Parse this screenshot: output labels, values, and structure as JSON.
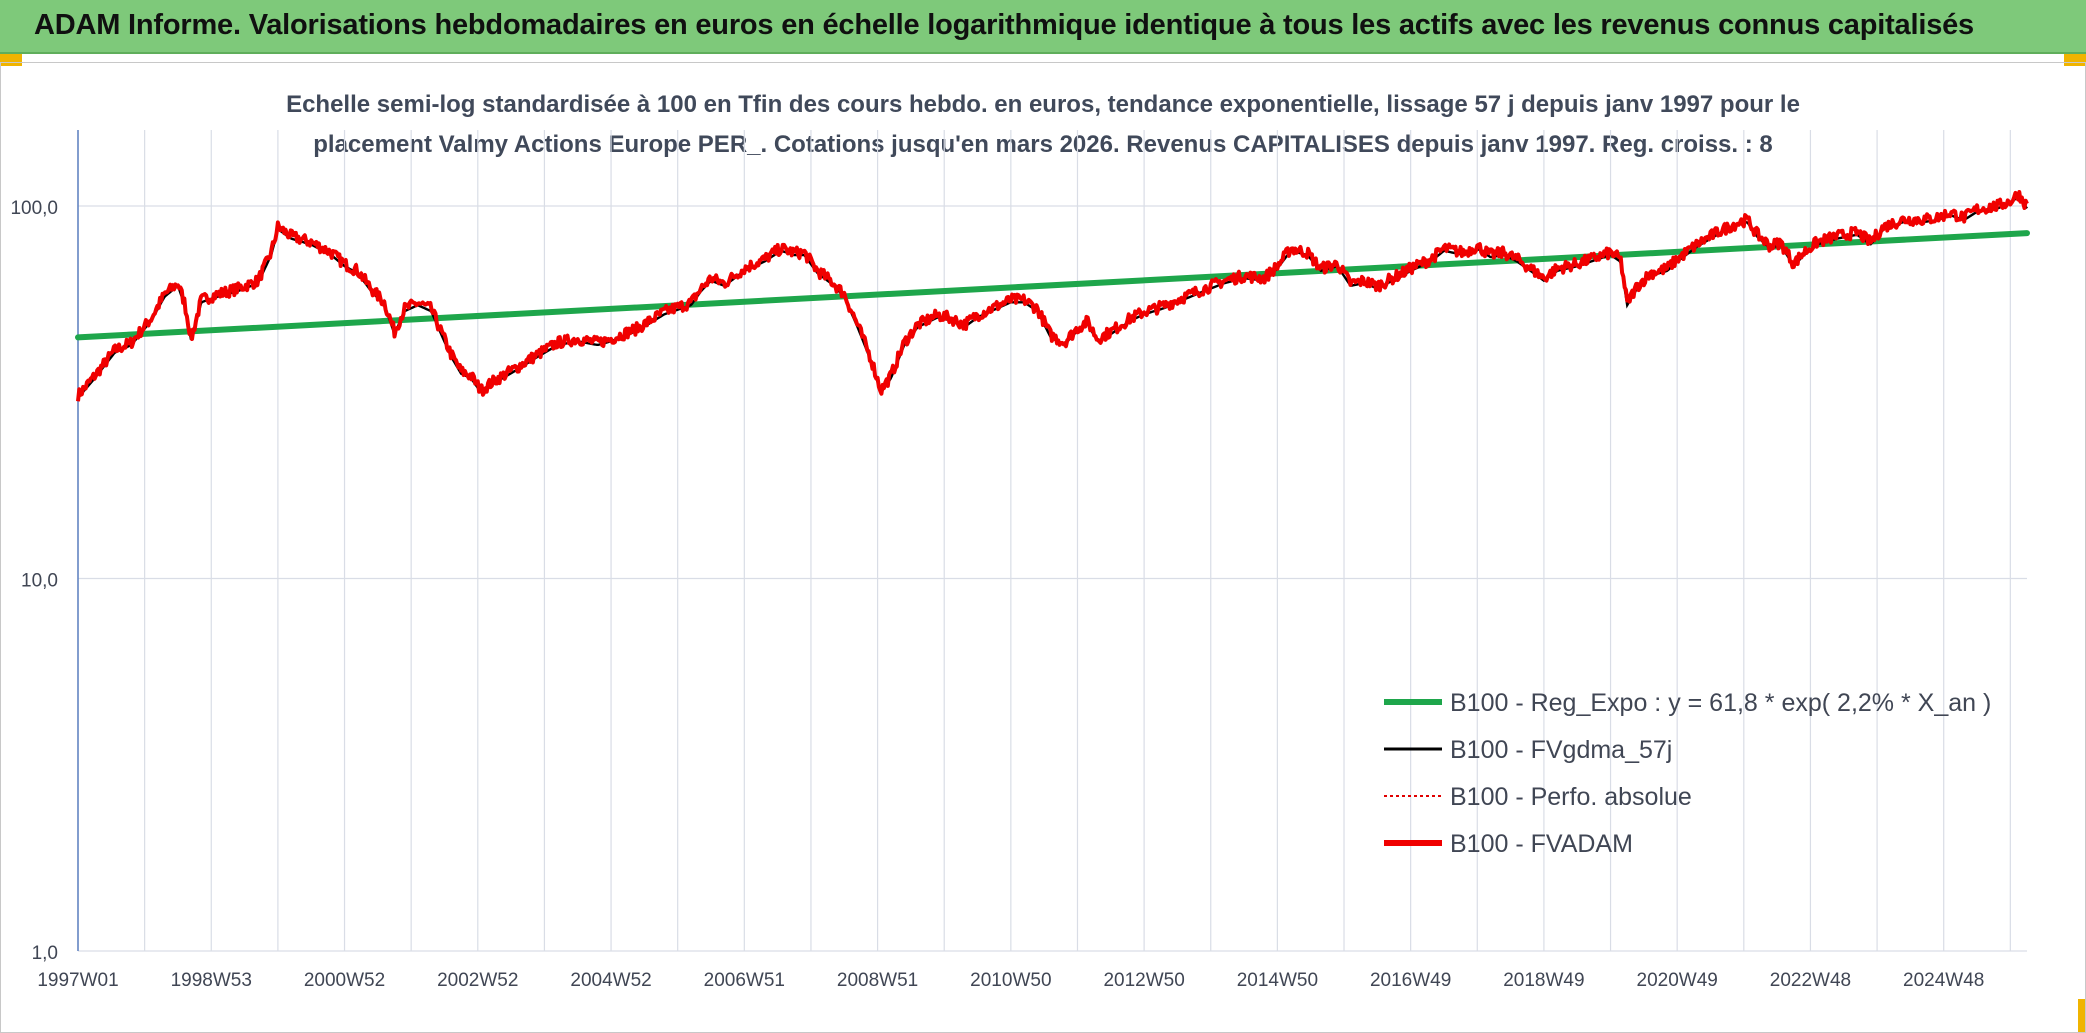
{
  "banner": {
    "title": "ADAM Informe. Valorisations hebdomadaires en euros en échelle logarithmique identique à tous les actifs avec les revenus connus capitalisés"
  },
  "colors": {
    "banner_bg": "#7ec97a",
    "accent": "#f0b400",
    "trend": "#1ea64b",
    "smooth": "#000000",
    "perfo": "#e00000",
    "fvadam": "#f00000",
    "grid": "#d9dde6"
  },
  "chart_data": {
    "type": "line",
    "title_lines": [
      "Echelle semi-log standardisée à 100 en Tfin des cours hebdo. en euros, tendance exponentielle, lissage 57 j depuis janv 1997 pour le",
      "placement Valmy Actions Europe PER_. Cotations jusqu'en mars 2026. Revenus CAPITALISES depuis janv 1997. Reg. croiss. : 8"
    ],
    "y_scale": "log",
    "ylim": [
      1,
      160
    ],
    "y_ticks": [
      {
        "value": 1,
        "label": "1,0"
      },
      {
        "value": 10,
        "label": "10,0"
      },
      {
        "value": 100,
        "label": "100,0"
      }
    ],
    "x_range": [
      1997.0,
      2026.25
    ],
    "x_ticks": [
      {
        "year": 1997.0,
        "label": "1997W01"
      },
      {
        "year": 1999.0,
        "label": "1998W53"
      },
      {
        "year": 2001.0,
        "label": "2000W52"
      },
      {
        "year": 2003.0,
        "label": "2002W52"
      },
      {
        "year": 2005.0,
        "label": "2004W52"
      },
      {
        "year": 2007.0,
        "label": "2006W51"
      },
      {
        "year": 2009.0,
        "label": "2008W51"
      },
      {
        "year": 2011.0,
        "label": "2010W50"
      },
      {
        "year": 2013.0,
        "label": "2012W50"
      },
      {
        "year": 2015.0,
        "label": "2014W50"
      },
      {
        "year": 2017.0,
        "label": "2016W49"
      },
      {
        "year": 2019.0,
        "label": "2018W49"
      },
      {
        "year": 2021.0,
        "label": "2020W49"
      },
      {
        "year": 2023.0,
        "label": "2022W48"
      },
      {
        "year": 2025.0,
        "label": "2024W48"
      }
    ],
    "grid": true,
    "legend_position": "bottom-right",
    "series": [
      {
        "key": "trend",
        "name": "B100 - Reg_Expo : y = 61,8 * exp( 2,2% *  X_an )",
        "style": "thick",
        "points": [
          [
            1997.0,
            44.4
          ],
          [
            2026.25,
            84.6
          ]
        ]
      },
      {
        "key": "smooth",
        "name": "B100 - FVgdma_57j",
        "style": "thin",
        "points": []
      },
      {
        "key": "perfo",
        "name": "B100 - Perfo. absolue",
        "style": "dotted",
        "points": []
      },
      {
        "key": "fvadam",
        "name": "B100 - FVADAM",
        "style": "thick",
        "points": [
          [
            1997.0,
            31
          ],
          [
            1997.25,
            35
          ],
          [
            1997.55,
            41
          ],
          [
            1997.8,
            43
          ],
          [
            1998.1,
            50
          ],
          [
            1998.3,
            58
          ],
          [
            1998.5,
            62
          ],
          [
            1998.6,
            55
          ],
          [
            1998.7,
            44
          ],
          [
            1998.85,
            56
          ],
          [
            1999.1,
            58
          ],
          [
            1999.4,
            60
          ],
          [
            1999.7,
            63
          ],
          [
            1999.9,
            75
          ],
          [
            2000.0,
            88
          ],
          [
            2000.2,
            83
          ],
          [
            2000.5,
            80
          ],
          [
            2000.8,
            75
          ],
          [
            2001.0,
            70
          ],
          [
            2001.2,
            67
          ],
          [
            2001.4,
            60
          ],
          [
            2001.6,
            55
          ],
          [
            2001.75,
            46
          ],
          [
            2001.9,
            53
          ],
          [
            2002.1,
            55
          ],
          [
            2002.3,
            53
          ],
          [
            2002.45,
            46
          ],
          [
            2002.6,
            40
          ],
          [
            2002.75,
            36
          ],
          [
            2002.9,
            35
          ],
          [
            2003.05,
            32
          ],
          [
            2003.25,
            34
          ],
          [
            2003.6,
            37
          ],
          [
            2003.9,
            40
          ],
          [
            2004.2,
            43
          ],
          [
            2004.5,
            44
          ],
          [
            2004.8,
            43
          ],
          [
            2005.0,
            44
          ],
          [
            2005.4,
            47
          ],
          [
            2005.8,
            52
          ],
          [
            2006.2,
            55
          ],
          [
            2006.35,
            60
          ],
          [
            2006.5,
            64
          ],
          [
            2006.7,
            62
          ],
          [
            2007.0,
            68
          ],
          [
            2007.3,
            72
          ],
          [
            2007.55,
            77
          ],
          [
            2007.75,
            75
          ],
          [
            2007.9,
            75
          ],
          [
            2008.1,
            67
          ],
          [
            2008.3,
            63
          ],
          [
            2008.5,
            58
          ],
          [
            2008.7,
            48
          ],
          [
            2008.9,
            39
          ],
          [
            2009.05,
            32
          ],
          [
            2009.2,
            35
          ],
          [
            2009.4,
            43
          ],
          [
            2009.6,
            48
          ],
          [
            2009.9,
            51
          ],
          [
            2010.1,
            50
          ],
          [
            2010.3,
            48
          ],
          [
            2010.5,
            51
          ],
          [
            2010.8,
            54
          ],
          [
            2011.0,
            56
          ],
          [
            2011.2,
            56
          ],
          [
            2011.4,
            53
          ],
          [
            2011.6,
            45
          ],
          [
            2011.8,
            43
          ],
          [
            2012.0,
            47
          ],
          [
            2012.15,
            49
          ],
          [
            2012.3,
            44
          ],
          [
            2012.5,
            46
          ],
          [
            2012.8,
            50
          ],
          [
            2013.0,
            52
          ],
          [
            2013.3,
            54
          ],
          [
            2013.6,
            57
          ],
          [
            2013.9,
            60
          ],
          [
            2014.2,
            63
          ],
          [
            2014.5,
            65
          ],
          [
            2014.8,
            64
          ],
          [
            2015.0,
            69
          ],
          [
            2015.2,
            77
          ],
          [
            2015.45,
            75
          ],
          [
            2015.65,
            68
          ],
          [
            2015.9,
            70
          ],
          [
            2016.1,
            62
          ],
          [
            2016.3,
            63
          ],
          [
            2016.5,
            61
          ],
          [
            2016.8,
            65
          ],
          [
            2017.0,
            68
          ],
          [
            2017.3,
            72
          ],
          [
            2017.5,
            77
          ],
          [
            2017.8,
            75
          ],
          [
            2018.0,
            78
          ],
          [
            2018.2,
            74
          ],
          [
            2018.4,
            75
          ],
          [
            2018.6,
            72
          ],
          [
            2018.8,
            68
          ],
          [
            2019.0,
            64
          ],
          [
            2019.2,
            68
          ],
          [
            2019.5,
            70
          ],
          [
            2019.8,
            73
          ],
          [
            2020.0,
            75
          ],
          [
            2020.15,
            72
          ],
          [
            2020.25,
            55
          ],
          [
            2020.4,
            61
          ],
          [
            2020.6,
            66
          ],
          [
            2020.85,
            68
          ],
          [
            2021.0,
            72
          ],
          [
            2021.3,
            79
          ],
          [
            2021.6,
            85
          ],
          [
            2021.9,
            90
          ],
          [
            2022.05,
            92
          ],
          [
            2022.2,
            84
          ],
          [
            2022.4,
            78
          ],
          [
            2022.55,
            80
          ],
          [
            2022.75,
            70
          ],
          [
            2022.9,
            75
          ],
          [
            2023.1,
            80
          ],
          [
            2023.4,
            83
          ],
          [
            2023.7,
            85
          ],
          [
            2023.9,
            80
          ],
          [
            2024.1,
            88
          ],
          [
            2024.4,
            92
          ],
          [
            2024.7,
            92
          ],
          [
            2024.9,
            93
          ],
          [
            2025.1,
            96
          ],
          [
            2025.3,
            93
          ],
          [
            2025.5,
            98
          ],
          [
            2025.8,
            100
          ],
          [
            2026.0,
            103
          ],
          [
            2026.12,
            108
          ],
          [
            2026.25,
            100
          ]
        ]
      }
    ]
  }
}
